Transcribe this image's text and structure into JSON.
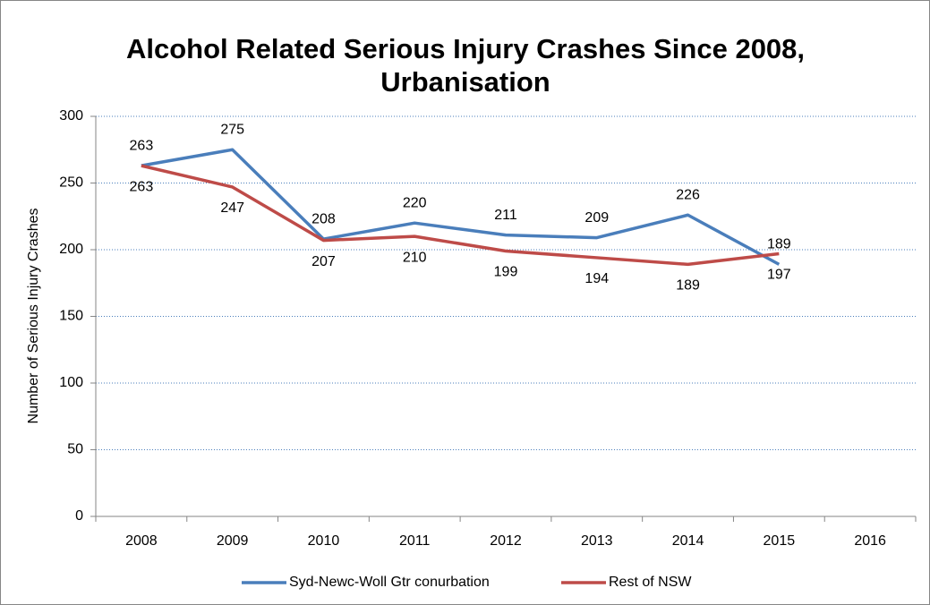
{
  "chart_data": {
    "type": "line",
    "title": "Alcohol Related Serious Injury Crashes Since 2008, Urbanisation",
    "ylabel": "Number of Serious Injury Crashes",
    "categories": [
      "2008",
      "2009",
      "2010",
      "2011",
      "2012",
      "2013",
      "2014",
      "2015",
      "2016"
    ],
    "series": [
      {
        "name": "Syd-Newc-Woll Gtr conurbation",
        "color": "#4a7ebb",
        "values": [
          263,
          275,
          208,
          220,
          211,
          209,
          226,
          189,
          null
        ]
      },
      {
        "name": "Rest of NSW",
        "color": "#be4b48",
        "values": [
          263,
          247,
          207,
          210,
          199,
          194,
          189,
          197,
          null
        ]
      }
    ],
    "ylim": [
      0,
      300
    ],
    "yticks": [
      0,
      50,
      100,
      150,
      200,
      250,
      300
    ],
    "grid": true,
    "legend": "bottom"
  }
}
